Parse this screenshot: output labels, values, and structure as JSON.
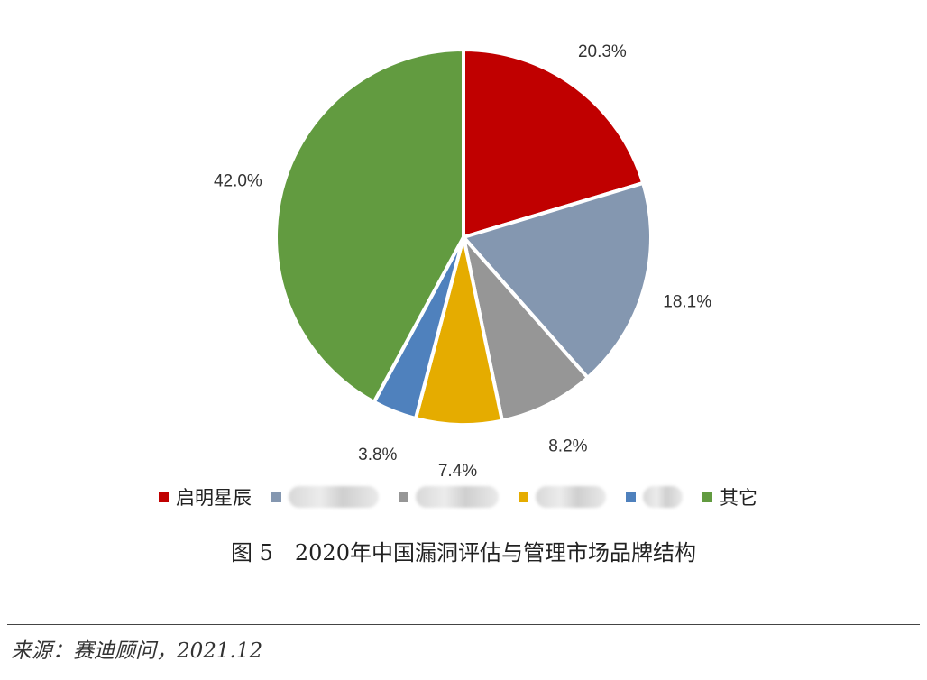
{
  "chart_data": {
    "type": "pie",
    "slices": [
      {
        "label": "启明星辰",
        "value": 20.3,
        "value_label": "20.3%",
        "color": "#C00000"
      },
      {
        "label": "",
        "value": 18.1,
        "value_label": "18.1%",
        "color": "#8497B0"
      },
      {
        "label": "",
        "value": 8.2,
        "value_label": "8.2%",
        "color": "#969696"
      },
      {
        "label": "",
        "value": 7.4,
        "value_label": "7.4%",
        "color": "#E5AC00"
      },
      {
        "label": "",
        "value": 3.8,
        "value_label": "3.8%",
        "color": "#4F81BD"
      },
      {
        "label": "其它",
        "value": 42.0,
        "value_label": "42.0%",
        "color": "#629B40"
      }
    ],
    "legend_placement": "bottom",
    "legend_obscured": [
      false,
      true,
      true,
      true,
      true,
      false
    ]
  },
  "caption": "图 5　2020年中国漏洞评估与管理市场品牌结构",
  "source": "来源：赛迪顾问，2021.12"
}
